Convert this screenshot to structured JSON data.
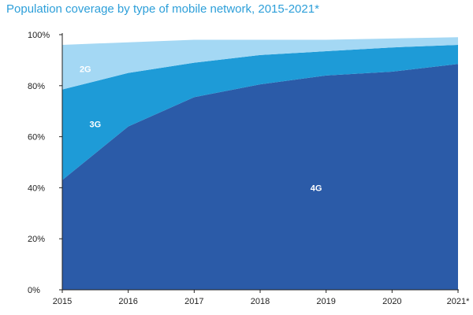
{
  "chart_data": {
    "type": "area",
    "stacked": true,
    "title": "Population coverage by type of mobile network, 2015-2021*",
    "xlabel": "",
    "ylabel": "",
    "categories": [
      "2015",
      "2016",
      "2017",
      "2018",
      "2019",
      "2020",
      "2021*"
    ],
    "ylim": [
      0,
      100
    ],
    "yticks": [
      0,
      20,
      40,
      60,
      80,
      100
    ],
    "ytick_labels": [
      "0%",
      "20%",
      "40%",
      "60%",
      "80%",
      "100%"
    ],
    "grid": false,
    "legend": "none (series labelled inside areas)",
    "series": [
      {
        "name": "4G",
        "values": [
          43,
          64,
          75.5,
          80.5,
          84,
          85.5,
          88.5
        ]
      },
      {
        "name": "3G",
        "values": [
          35.5,
          21,
          13.5,
          11.5,
          9.5,
          9.5,
          7.5
        ]
      },
      {
        "name": "2G",
        "values": [
          17.5,
          12,
          9,
          6,
          4.5,
          3.5,
          3
        ]
      }
    ],
    "colors": {
      "4G": "#2b5ba8",
      "3G": "#1e9bd7",
      "2G": "#a4d8f4",
      "title": "#2d9fd9",
      "axis": "#222222"
    }
  }
}
